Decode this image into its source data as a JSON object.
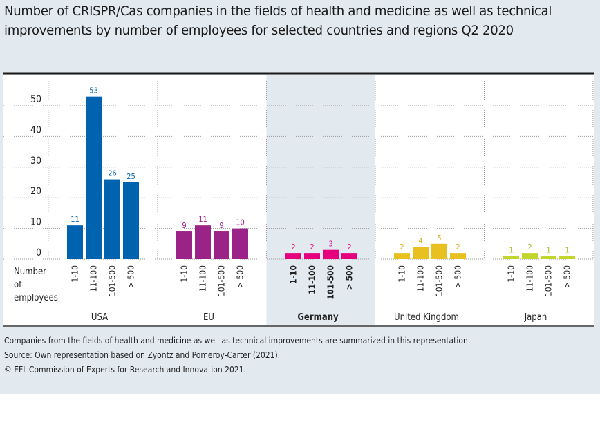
{
  "title": "Number of CRISPR/Cas companies in the fields of health and medicine as well as technical improvements by number of employees for selected countries and regions Q2 2020",
  "chart_data": {
    "type": "bar",
    "xlabel": "Number of employees",
    "ylabel": "",
    "ylim": [
      0,
      55
    ],
    "yticks": [
      0,
      10,
      20,
      30,
      40,
      50
    ],
    "grid": true,
    "categories": [
      "1-10",
      "11-100",
      "101-500",
      "> 500"
    ],
    "series": [
      {
        "name": "USA",
        "color": "#0063af",
        "values": [
          11,
          53,
          26,
          25
        ]
      },
      {
        "name": "EU",
        "color": "#9b2388",
        "values": [
          9,
          11,
          9,
          10
        ]
      },
      {
        "name": "Germany",
        "color": "#e6007e",
        "values": [
          2,
          2,
          3,
          2
        ],
        "highlight": true
      },
      {
        "name": "United Kingdom",
        "color": "#e8c01f",
        "values": [
          2,
          4,
          5,
          2
        ]
      },
      {
        "name": "Japan",
        "color": "#c2d52d",
        "values": [
          1,
          2,
          1,
          1
        ]
      }
    ]
  },
  "axis_label_lines": [
    "Number",
    "of",
    "employees"
  ],
  "footnotes": [
    "Companies from the fields of health and medicine as well as technical improvements are summarized in this representation.",
    "Source: Own representation based on Zyontz and Pomeroy-Carter (2021).",
    "© EFI–Commission of Experts for Research and Innovation 2021."
  ]
}
